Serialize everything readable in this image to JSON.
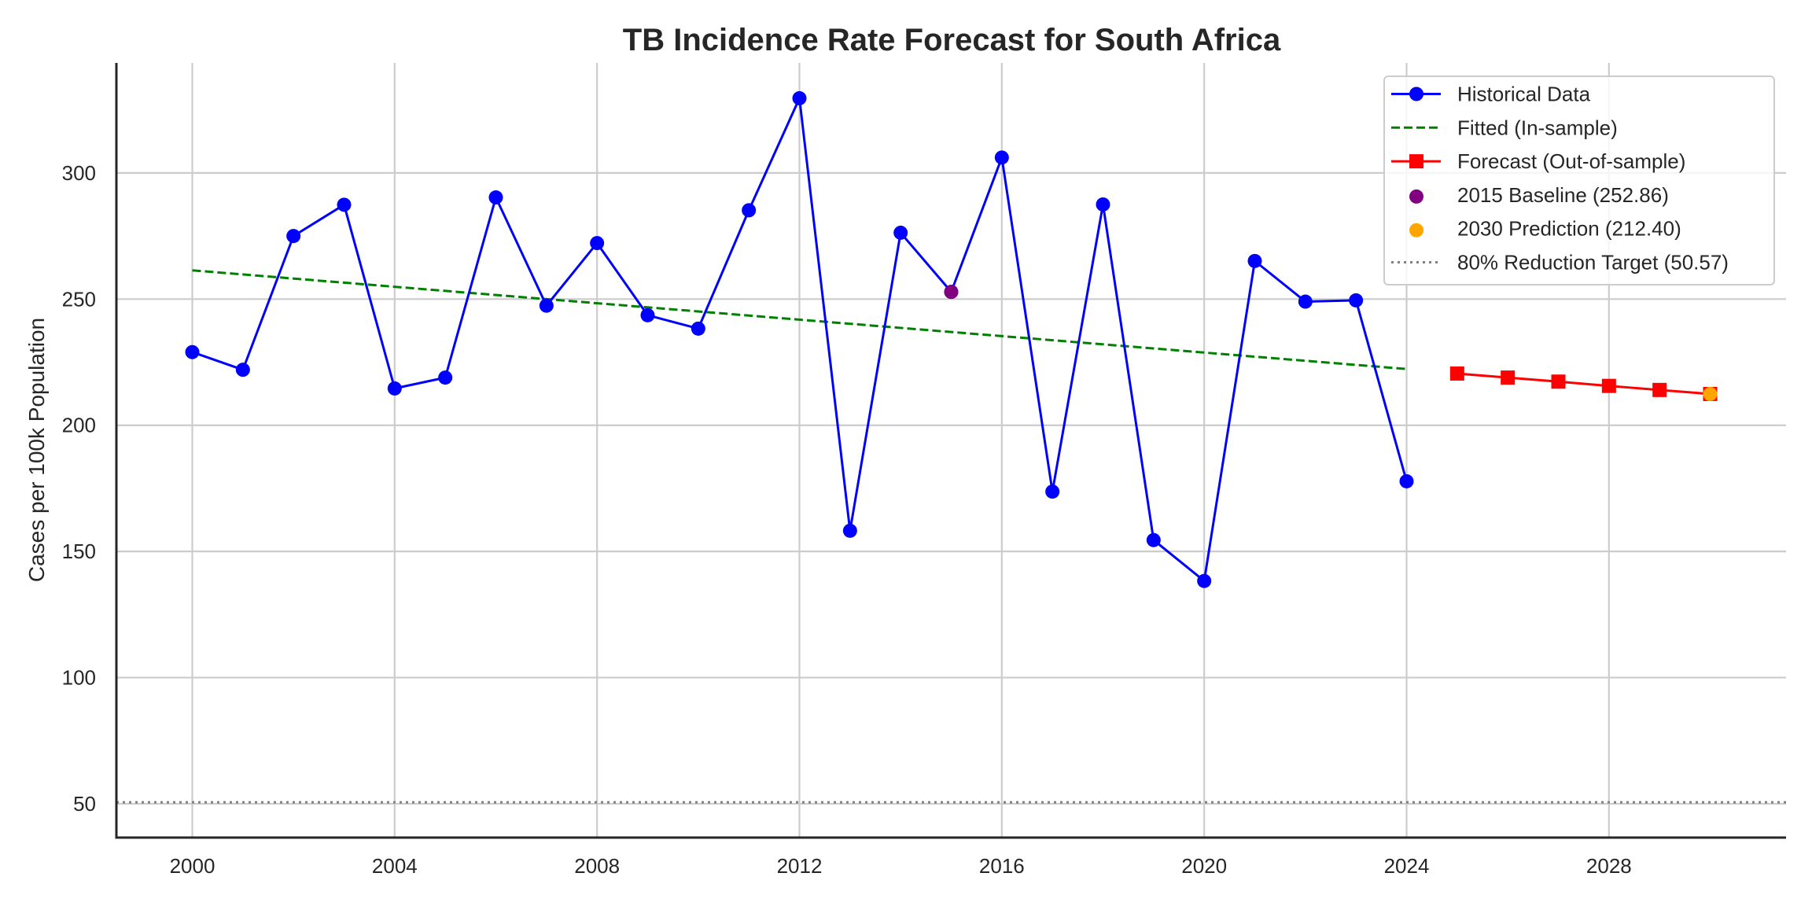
{
  "chart_data": {
    "type": "line",
    "title": "TB Incidence Rate Forecast for South Africa",
    "xlabel": "",
    "ylabel": "Cases per 100k Population",
    "xlim": [
      1998.5,
      2031.5
    ],
    "ylim": [
      36.6,
      343.6
    ],
    "x_ticks": [
      2000,
      2004,
      2008,
      2012,
      2016,
      2020,
      2024,
      2028
    ],
    "x_tick_labels": [
      "2000",
      "2004",
      "2008",
      "2012",
      "2016",
      "2020",
      "2024",
      "2028"
    ],
    "y_ticks": [
      50,
      100,
      150,
      200,
      250,
      300
    ],
    "y_tick_labels": [
      "50",
      "100",
      "150",
      "200",
      "250",
      "300"
    ],
    "grid": true,
    "legend_position": "top-right",
    "series": [
      {
        "name": "Historical Data",
        "kind": "line-marker-circle",
        "color": "#0000ff",
        "x": [
          2000,
          2001,
          2002,
          2003,
          2004,
          2005,
          2006,
          2007,
          2008,
          2009,
          2010,
          2011,
          2012,
          2013,
          2014,
          2015,
          2016,
          2017,
          2018,
          2019,
          2020,
          2021,
          2022,
          2023,
          2024
        ],
        "y": [
          229.0,
          222.0,
          275.0,
          287.4,
          214.6,
          218.9,
          290.3,
          247.4,
          272.2,
          243.6,
          238.3,
          285.2,
          329.6,
          158.2,
          276.3,
          252.86,
          306.1,
          173.7,
          287.5,
          154.5,
          138.3,
          265.1,
          249.0,
          249.5,
          177.8
        ]
      },
      {
        "name": "Fitted (In-sample)",
        "kind": "dashed-line",
        "color": "#008000",
        "x": [
          2000,
          2024
        ],
        "y": [
          261.4,
          222.3
        ]
      },
      {
        "name": "Forecast (Out-of-sample)",
        "kind": "line-marker-square",
        "color": "#ff0000",
        "x": [
          2025,
          2026,
          2027,
          2028,
          2029,
          2030
        ],
        "y": [
          220.5,
          218.9,
          217.3,
          215.6,
          214.0,
          212.4
        ]
      },
      {
        "name": "2015 Baseline (252.86)",
        "kind": "point",
        "color": "#800080",
        "x": [
          2015
        ],
        "y": [
          252.86
        ]
      },
      {
        "name": "2030 Prediction (212.40)",
        "kind": "point",
        "color": "#ffa500",
        "x": [
          2030
        ],
        "y": [
          212.4
        ]
      },
      {
        "name": "80% Reduction Target (50.57)",
        "kind": "dotted-hline",
        "color": "#808080",
        "y": [
          50.57
        ]
      }
    ]
  }
}
